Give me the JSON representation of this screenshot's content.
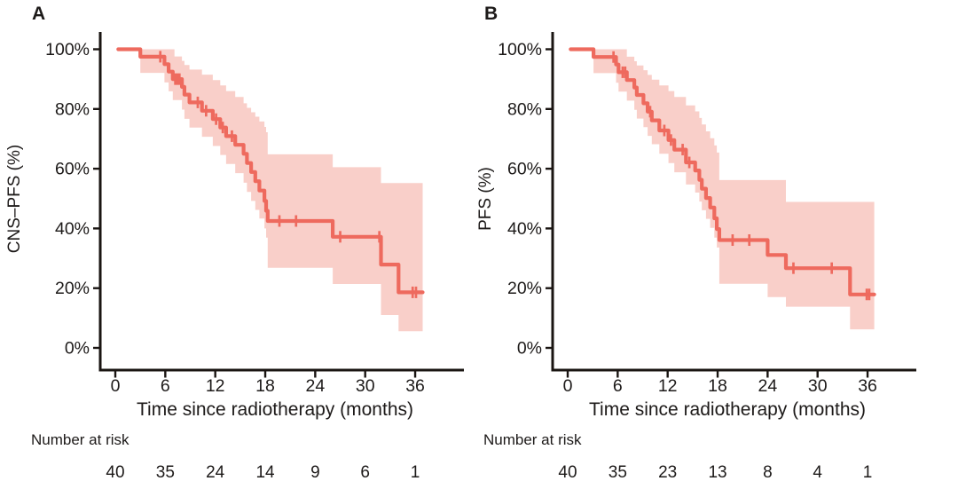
{
  "figure": {
    "background": "#ffffff",
    "line_color": "#ee6a5e",
    "band_color": "#f9cfc9",
    "axis_color": "#1a1512",
    "text_color": "#1d1a19"
  },
  "chart_data": {
    "type": "line",
    "chart_kind": "kaplan-meier-survival",
    "grid": false,
    "legend": false,
    "panels": [
      {
        "label": "A",
        "y_axis_title": "CNS–PFS (%)",
        "x_axis_title": "Time since radiotherapy (months)",
        "x_ticks": [
          0,
          6,
          12,
          18,
          24,
          30,
          36
        ],
        "y_tick_labels": [
          "100%",
          "80%",
          "60%",
          "40%",
          "20%",
          "0%"
        ],
        "y_tick_values": [
          100,
          80,
          60,
          40,
          20,
          0
        ],
        "xlim": [
          0,
          38.5
        ],
        "ylim": [
          0,
          100
        ],
        "risk_table_title": "Number at risk",
        "risk_times": [
          0,
          6,
          12,
          18,
          24,
          30,
          36
        ],
        "risk_counts": [
          40,
          35,
          24,
          14,
          9,
          6,
          1
        ],
        "curve_start_time": 0.35,
        "curve_end_time": 36.9,
        "survival_steps": [
          [
            3.0,
            97.5
          ],
          [
            5.9,
            95.0
          ],
          [
            6.4,
            92.5
          ],
          [
            6.9,
            90.0
          ],
          [
            8.0,
            87.4
          ],
          [
            8.3,
            84.8
          ],
          [
            8.9,
            82.2
          ],
          [
            10.4,
            79.4
          ],
          [
            11.7,
            76.6
          ],
          [
            12.6,
            73.8
          ],
          [
            13.3,
            70.9
          ],
          [
            14.4,
            68.0
          ],
          [
            15.4,
            65.0
          ],
          [
            15.8,
            61.9
          ],
          [
            16.3,
            58.9
          ],
          [
            16.8,
            55.8
          ],
          [
            17.3,
            52.7
          ],
          [
            17.9,
            49.2
          ],
          [
            18.1,
            45.9
          ],
          [
            18.3,
            42.5
          ],
          [
            26.1,
            37.2
          ],
          [
            31.9,
            27.9
          ],
          [
            34.0,
            18.6
          ]
        ],
        "censor_marks": [
          [
            5.4,
            97.5
          ],
          [
            7.2,
            90.0
          ],
          [
            7.45,
            90.0
          ],
          [
            7.7,
            90.0
          ],
          [
            9.9,
            82.2
          ],
          [
            10.9,
            79.4
          ],
          [
            12.1,
            76.6
          ],
          [
            12.9,
            73.8
          ],
          [
            14.0,
            70.9
          ],
          [
            19.7,
            42.5
          ],
          [
            21.7,
            42.5
          ],
          [
            27.0,
            37.2
          ],
          [
            31.7,
            37.2
          ],
          [
            35.7,
            18.6
          ],
          [
            36.1,
            18.6
          ]
        ],
        "ci_upper_steps": [
          [
            3.0,
            100
          ],
          [
            7.1,
            97.6
          ],
          [
            8.0,
            96.1
          ],
          [
            8.3,
            94.7
          ],
          [
            8.9,
            93.2
          ],
          [
            10.4,
            91.5
          ],
          [
            11.7,
            89.7
          ],
          [
            12.6,
            87.9
          ],
          [
            13.3,
            86.0
          ],
          [
            14.4,
            84.0
          ],
          [
            15.4,
            81.9
          ],
          [
            15.8,
            80.4
          ],
          [
            16.3,
            78.9
          ],
          [
            16.8,
            77.4
          ],
          [
            17.3,
            75.8
          ],
          [
            17.9,
            74.0
          ],
          [
            18.1,
            72.2
          ],
          [
            18.3,
            64.8
          ],
          [
            26.1,
            60.5
          ],
          [
            31.9,
            55.2
          ]
        ],
        "ci_lower_steps": [
          [
            3.0,
            92.1
          ],
          [
            5.9,
            88.9
          ],
          [
            6.4,
            85.9
          ],
          [
            6.9,
            83.0
          ],
          [
            8.0,
            79.8
          ],
          [
            8.3,
            76.7
          ],
          [
            8.9,
            73.8
          ],
          [
            10.4,
            70.7
          ],
          [
            11.7,
            67.6
          ],
          [
            12.6,
            64.6
          ],
          [
            13.3,
            61.6
          ],
          [
            14.4,
            58.5
          ],
          [
            15.4,
            55.3
          ],
          [
            15.8,
            52.2
          ],
          [
            16.3,
            49.2
          ],
          [
            16.8,
            46.2
          ],
          [
            17.3,
            43.3
          ],
          [
            17.9,
            40.0
          ],
          [
            18.1,
            36.9
          ],
          [
            18.3,
            26.8
          ],
          [
            26.1,
            21.4
          ],
          [
            31.9,
            11.0
          ],
          [
            34.0,
            5.6
          ]
        ]
      },
      {
        "label": "B",
        "y_axis_title": "PFS (%)",
        "x_axis_title": "Time since radiotherapy (months)",
        "x_ticks": [
          0,
          6,
          12,
          18,
          24,
          30,
          36
        ],
        "y_tick_labels": [
          "100%",
          "80%",
          "60%",
          "40%",
          "20%",
          "0%"
        ],
        "y_tick_values": [
          100,
          80,
          60,
          40,
          20,
          0
        ],
        "xlim": [
          0,
          38.5
        ],
        "ylim": [
          0,
          100
        ],
        "risk_table_title": "Number at risk",
        "risk_times": [
          0,
          6,
          12,
          18,
          24,
          30,
          36
        ],
        "risk_counts": [
          40,
          35,
          23,
          13,
          8,
          4,
          1
        ],
        "curve_start_time": 0.35,
        "curve_end_time": 36.8,
        "survival_steps": [
          [
            3.1,
            97.4
          ],
          [
            5.8,
            94.9
          ],
          [
            6.1,
            92.3
          ],
          [
            7.1,
            89.7
          ],
          [
            8.0,
            87.2
          ],
          [
            8.3,
            84.7
          ],
          [
            9.1,
            81.9
          ],
          [
            9.6,
            79.1
          ],
          [
            10.1,
            76.2
          ],
          [
            11.0,
            72.8
          ],
          [
            12.1,
            69.6
          ],
          [
            12.8,
            66.4
          ],
          [
            14.2,
            62.1
          ],
          [
            15.3,
            59.4
          ],
          [
            15.8,
            56.3
          ],
          [
            16.1,
            53.3
          ],
          [
            16.6,
            50.2
          ],
          [
            17.1,
            47.0
          ],
          [
            17.6,
            43.4
          ],
          [
            17.9,
            39.8
          ],
          [
            18.2,
            36.1
          ],
          [
            24.0,
            31.1
          ],
          [
            26.2,
            26.7
          ],
          [
            33.9,
            17.9
          ]
        ],
        "censor_marks": [
          [
            5.5,
            97.4
          ],
          [
            6.6,
            92.3
          ],
          [
            6.9,
            92.3
          ],
          [
            9.9,
            79.1
          ],
          [
            11.6,
            72.8
          ],
          [
            12.4,
            69.6
          ],
          [
            13.8,
            66.4
          ],
          [
            14.6,
            62.1
          ],
          [
            19.8,
            36.1
          ],
          [
            21.8,
            36.1
          ],
          [
            27.1,
            26.7
          ],
          [
            31.7,
            26.7
          ],
          [
            35.9,
            17.9
          ],
          [
            36.2,
            17.9
          ]
        ],
        "ci_upper_steps": [
          [
            3.1,
            100
          ],
          [
            7.1,
            97.5
          ],
          [
            8.0,
            96.0
          ],
          [
            8.3,
            94.6
          ],
          [
            9.1,
            93.0
          ],
          [
            9.6,
            91.4
          ],
          [
            10.1,
            89.8
          ],
          [
            11.0,
            87.9
          ],
          [
            12.1,
            86.0
          ],
          [
            12.8,
            84.0
          ],
          [
            14.2,
            81.2
          ],
          [
            15.3,
            79.2
          ],
          [
            15.8,
            77.0
          ],
          [
            16.1,
            74.8
          ],
          [
            16.6,
            72.5
          ],
          [
            17.1,
            70.2
          ],
          [
            17.6,
            67.8
          ],
          [
            17.9,
            65.4
          ],
          [
            18.2,
            56.2
          ],
          [
            26.2,
            48.9
          ]
        ],
        "ci_lower_steps": [
          [
            3.1,
            92.0
          ],
          [
            5.8,
            88.8
          ],
          [
            6.1,
            85.8
          ],
          [
            7.1,
            82.8
          ],
          [
            8.0,
            79.7
          ],
          [
            8.3,
            76.8
          ],
          [
            9.1,
            73.9
          ],
          [
            9.6,
            71.0
          ],
          [
            10.1,
            68.2
          ],
          [
            11.0,
            65.0
          ],
          [
            12.1,
            61.9
          ],
          [
            12.8,
            58.8
          ],
          [
            14.2,
            54.7
          ],
          [
            15.3,
            52.0
          ],
          [
            15.8,
            49.0
          ],
          [
            16.1,
            46.1
          ],
          [
            16.6,
            43.2
          ],
          [
            17.1,
            40.2
          ],
          [
            17.6,
            36.9
          ],
          [
            17.9,
            33.6
          ],
          [
            18.2,
            21.5
          ],
          [
            24.0,
            17.0
          ],
          [
            26.2,
            13.8
          ],
          [
            33.9,
            6.2
          ]
        ]
      }
    ]
  }
}
